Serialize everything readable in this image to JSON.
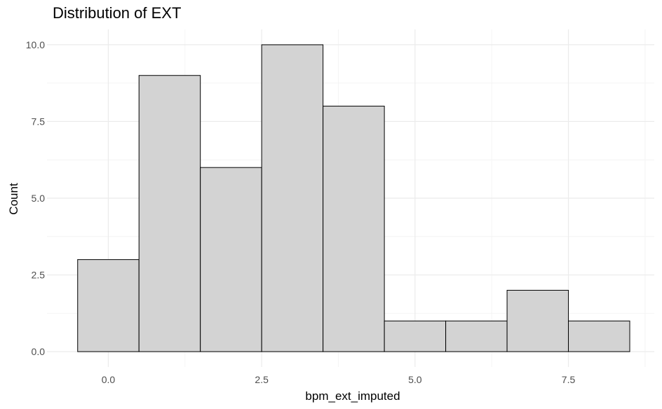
{
  "chart_data": {
    "type": "bar",
    "title": "Distribution of EXT",
    "xlabel": "bpm_ext_imputed",
    "ylabel": "Count",
    "bin_width": 1,
    "bins": [
      {
        "center": 0,
        "count": 3
      },
      {
        "center": 1,
        "count": 9
      },
      {
        "center": 2,
        "count": 6
      },
      {
        "center": 3,
        "count": 10
      },
      {
        "center": 4,
        "count": 8
      },
      {
        "center": 5,
        "count": 1
      },
      {
        "center": 6,
        "count": 1
      },
      {
        "center": 7,
        "count": 2
      },
      {
        "center": 8,
        "count": 1
      }
    ],
    "xlim": [
      -1,
      8.9
    ],
    "ylim": [
      -0.5,
      10.5
    ],
    "x_ticks": [
      0,
      2.5,
      5,
      7.5
    ],
    "x_tick_labels": [
      "0.0",
      "2.5",
      "5.0",
      "7.5"
    ],
    "y_ticks": [
      0,
      2.5,
      5,
      7.5,
      10
    ],
    "y_tick_labels": [
      "0.0",
      "2.5",
      "5.0",
      "7.5",
      "10.0"
    ],
    "grid": true,
    "colors": {
      "fill": "#d3d3d3",
      "stroke": "#000000",
      "grid_major": "#ebebeb",
      "grid_minor": "#f4f4f4"
    }
  }
}
